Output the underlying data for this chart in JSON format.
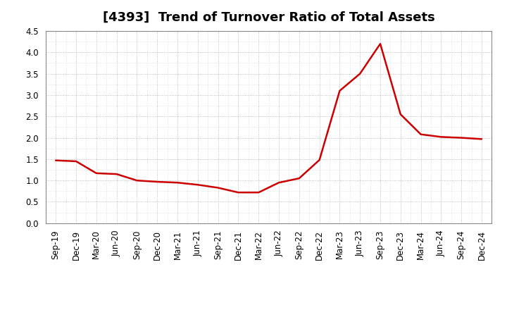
{
  "title": "[4393]  Trend of Turnover Ratio of Total Assets",
  "x_labels": [
    "Sep-19",
    "Dec-19",
    "Mar-20",
    "Jun-20",
    "Sep-20",
    "Dec-20",
    "Mar-21",
    "Jun-21",
    "Sep-21",
    "Dec-21",
    "Mar-22",
    "Jun-22",
    "Sep-22",
    "Dec-22",
    "Mar-23",
    "Jun-23",
    "Sep-23",
    "Dec-23",
    "Mar-24",
    "Jun-24",
    "Sep-24",
    "Dec-24"
  ],
  "y_values": [
    1.47,
    1.45,
    1.17,
    1.15,
    1.0,
    0.97,
    0.95,
    0.9,
    0.83,
    0.72,
    0.72,
    0.95,
    1.05,
    1.48,
    3.1,
    3.5,
    4.2,
    2.55,
    2.08,
    2.02,
    2.0,
    1.97
  ],
  "ylim": [
    0.0,
    4.5
  ],
  "yticks": [
    0.0,
    0.5,
    1.0,
    1.5,
    2.0,
    2.5,
    3.0,
    3.5,
    4.0,
    4.5
  ],
  "line_color": "#cc0000",
  "line_width": 1.8,
  "background_color": "#ffffff",
  "plot_bg_color": "#ffffff",
  "grid_color": "#999999",
  "title_fontsize": 13,
  "tick_fontsize": 8.5
}
